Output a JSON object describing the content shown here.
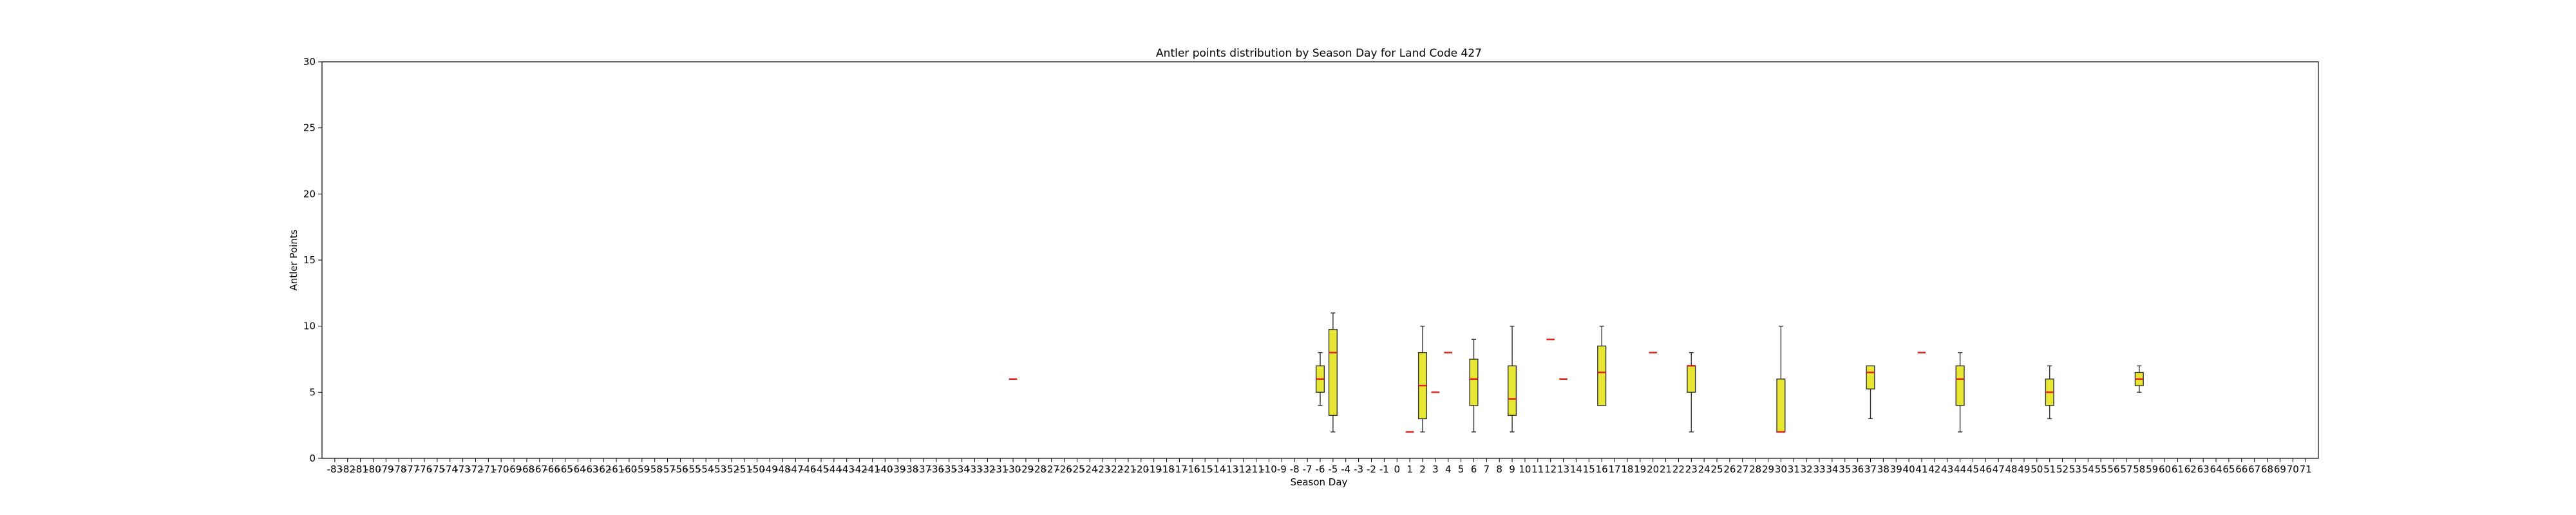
{
  "chart_data": {
    "type": "boxplot",
    "title": "Antler points distribution by Season Day for Land Code 427",
    "xlabel": "Season Day",
    "ylabel": "Antler Points",
    "ylim": [
      0,
      30
    ],
    "yticks": [
      0,
      5,
      10,
      15,
      20,
      25,
      30
    ],
    "x_range": [
      -83,
      71
    ],
    "grid": false,
    "legend": "none",
    "colors": {
      "box_fill": "#e6e633",
      "median": "#dd2222",
      "box_edge": "#333333",
      "axis": "#000000"
    },
    "boxes": [
      {
        "day": -30,
        "min": 6,
        "q1": 6,
        "median": 6,
        "q3": 6,
        "max": 6
      },
      {
        "day": -6,
        "min": 4,
        "q1": 5,
        "median": 6,
        "q3": 7,
        "max": 8
      },
      {
        "day": -5,
        "min": 2,
        "q1": 3.25,
        "median": 8,
        "q3": 9.75,
        "max": 11
      },
      {
        "day": 1,
        "min": 2,
        "q1": 2,
        "median": 2,
        "q3": 2,
        "max": 2
      },
      {
        "day": 2,
        "min": 2,
        "q1": 3,
        "median": 5.5,
        "q3": 8,
        "max": 10
      },
      {
        "day": 3,
        "min": 5,
        "q1": 5,
        "median": 5,
        "q3": 5,
        "max": 5
      },
      {
        "day": 4,
        "min": 8,
        "q1": 8,
        "median": 8,
        "q3": 8,
        "max": 8
      },
      {
        "day": 6,
        "min": 2,
        "q1": 4,
        "median": 6,
        "q3": 7.5,
        "max": 9
      },
      {
        "day": 9,
        "min": 2,
        "q1": 3.25,
        "median": 4.5,
        "q3": 7,
        "max": 10
      },
      {
        "day": 12,
        "min": 9,
        "q1": 9,
        "median": 9,
        "q3": 9,
        "max": 9
      },
      {
        "day": 13,
        "min": 6,
        "q1": 6,
        "median": 6,
        "q3": 6,
        "max": 6
      },
      {
        "day": 16,
        "min": 4,
        "q1": 4,
        "median": 6.5,
        "q3": 8.5,
        "max": 10
      },
      {
        "day": 20,
        "min": 8,
        "q1": 8,
        "median": 8,
        "q3": 8,
        "max": 8
      },
      {
        "day": 23,
        "min": 2,
        "q1": 5,
        "median": 7,
        "q3": 7,
        "max": 8
      },
      {
        "day": 30,
        "min": 2,
        "q1": 2,
        "median": 2,
        "q3": 6,
        "max": 10
      },
      {
        "day": 37,
        "min": 3,
        "q1": 5.25,
        "median": 6.5,
        "q3": 7,
        "max": 7
      },
      {
        "day": 41,
        "min": 8,
        "q1": 8,
        "median": 8,
        "q3": 8,
        "max": 8
      },
      {
        "day": 44,
        "min": 2,
        "q1": 4,
        "median": 6,
        "q3": 7,
        "max": 8
      },
      {
        "day": 51,
        "min": 3,
        "q1": 4,
        "median": 5,
        "q3": 6,
        "max": 7
      },
      {
        "day": 58,
        "min": 5,
        "q1": 5.5,
        "median": 6,
        "q3": 6.5,
        "max": 7
      }
    ]
  }
}
